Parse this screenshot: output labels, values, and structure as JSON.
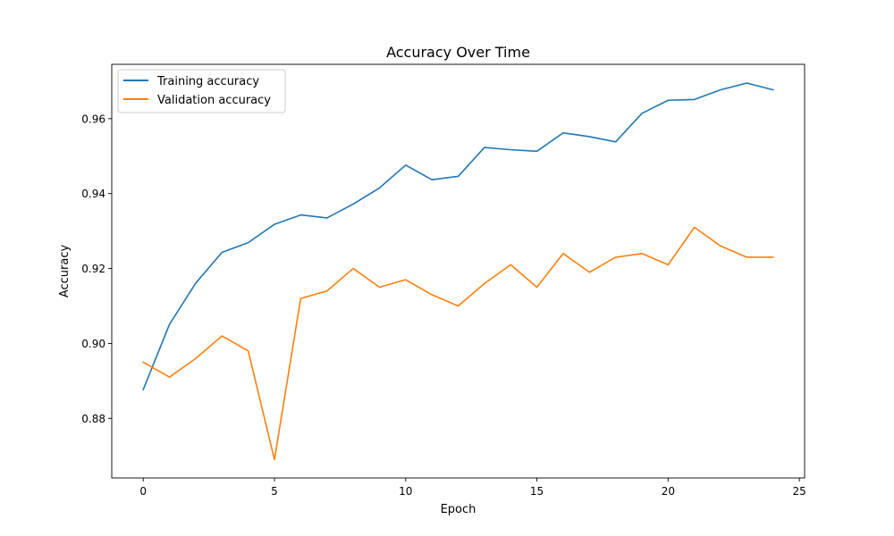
{
  "chart_data": {
    "type": "line",
    "title": "Accuracy Over Time",
    "xlabel": "Epoch",
    "ylabel": "Accuracy",
    "xlim": [
      -1.2,
      25.2
    ],
    "ylim": [
      0.8641,
      0.9745
    ],
    "x_ticks": [
      0,
      5,
      10,
      15,
      20,
      25
    ],
    "x_tick_labels": [
      "0",
      "5",
      "10",
      "15",
      "20",
      "25"
    ],
    "y_ticks": [
      0.88,
      0.9,
      0.92,
      0.94,
      0.96
    ],
    "y_tick_labels": [
      "0.88",
      "0.90",
      "0.92",
      "0.94",
      "0.96"
    ],
    "grid": false,
    "legend_position": "top-left",
    "x": [
      0,
      1,
      2,
      3,
      4,
      5,
      6,
      7,
      8,
      9,
      10,
      11,
      12,
      13,
      14,
      15,
      16,
      17,
      18,
      19,
      20,
      21,
      22,
      23,
      24
    ],
    "series": [
      {
        "name": "Training accuracy",
        "color": "#1f77b4",
        "values": [
          0.8877,
          0.9051,
          0.9161,
          0.9243,
          0.9269,
          0.9318,
          0.9343,
          0.9335,
          0.9372,
          0.9415,
          0.9476,
          0.9437,
          0.9446,
          0.9523,
          0.9517,
          0.9513,
          0.9562,
          0.9552,
          0.9538,
          0.9614,
          0.9649,
          0.9651,
          0.9677,
          0.9695,
          0.9677
        ]
      },
      {
        "name": "Validation accuracy",
        "color": "#ff7f0e",
        "values": [
          0.895,
          0.891,
          0.896,
          0.902,
          0.898,
          0.869,
          0.912,
          0.914,
          0.92,
          0.915,
          0.917,
          0.913,
          0.91,
          0.916,
          0.921,
          0.915,
          0.924,
          0.919,
          0.923,
          0.924,
          0.921,
          0.931,
          0.926,
          0.923,
          0.923
        ]
      }
    ]
  }
}
